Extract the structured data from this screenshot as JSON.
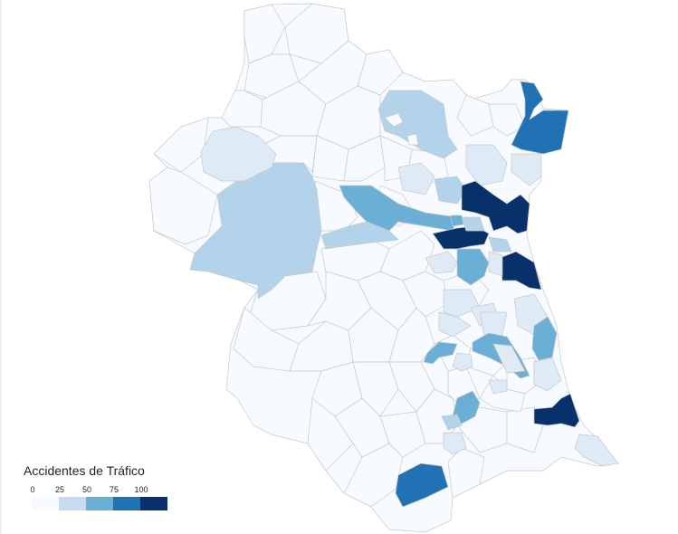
{
  "legend": {
    "title": "Accidentes de Tráfico",
    "ticks": [
      "0",
      "25",
      "50",
      "75",
      "100"
    ],
    "colors": [
      "#f7fbff",
      "#c6dbef",
      "#6baed6",
      "#2171b5",
      "#08306b"
    ]
  },
  "palette": {
    "c0": "#f7fbff",
    "c1": "#deebf7",
    "c2": "#b3d3ea",
    "c3": "#6baed6",
    "c4": "#2171b5",
    "c5": "#08306b"
  }
}
